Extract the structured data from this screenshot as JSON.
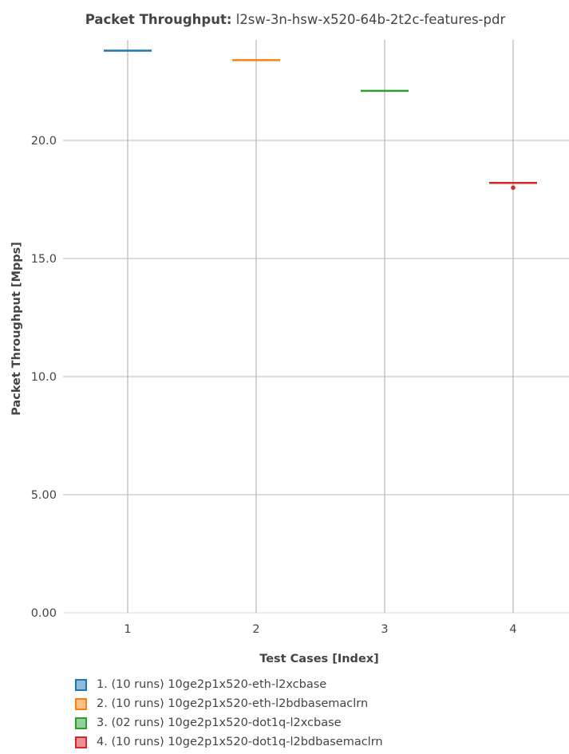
{
  "chart_data": {
    "type": "box",
    "title_prefix": "Packet Throughput:",
    "title_rest": " l2sw-3n-hsw-x520-64b-2t2c-features-pdr",
    "xlabel": "Test Cases [Index]",
    "ylabel": "Packet Throughput [Mpps]",
    "ylim": [
      0,
      24.0
    ],
    "yticks": [
      0,
      5,
      10,
      15,
      20
    ],
    "ytick_labels": [
      "0.00",
      "5.00",
      "10.0",
      "15.0",
      "20.0"
    ],
    "categories": [
      "1",
      "2",
      "3",
      "4"
    ],
    "series": [
      {
        "name": "1. (10 runs) 10ge2p1x520-eth-l2xcbase",
        "x": 1,
        "median": 23.8,
        "outliers": [],
        "color": "#1f77b4",
        "fill": "#8fbbd9"
      },
      {
        "name": "2. (10 runs) 10ge2p1x520-eth-l2bdbasemaclrn",
        "x": 2,
        "median": 23.4,
        "outliers": [],
        "color": "#ff7f0e",
        "fill": "#ffbf86"
      },
      {
        "name": "3. (02 runs) 10ge2p1x520-dot1q-l2xcbase",
        "x": 3,
        "median": 22.1,
        "outliers": [],
        "color": "#2ca02c",
        "fill": "#95cf95"
      },
      {
        "name": "4. (10 runs) 10ge2p1x520-dot1q-l2bdbasemaclrn",
        "x": 4,
        "median": 18.2,
        "outliers": [
          18.0
        ],
        "color": "#d62728",
        "fill": "#ea9293"
      }
    ]
  }
}
